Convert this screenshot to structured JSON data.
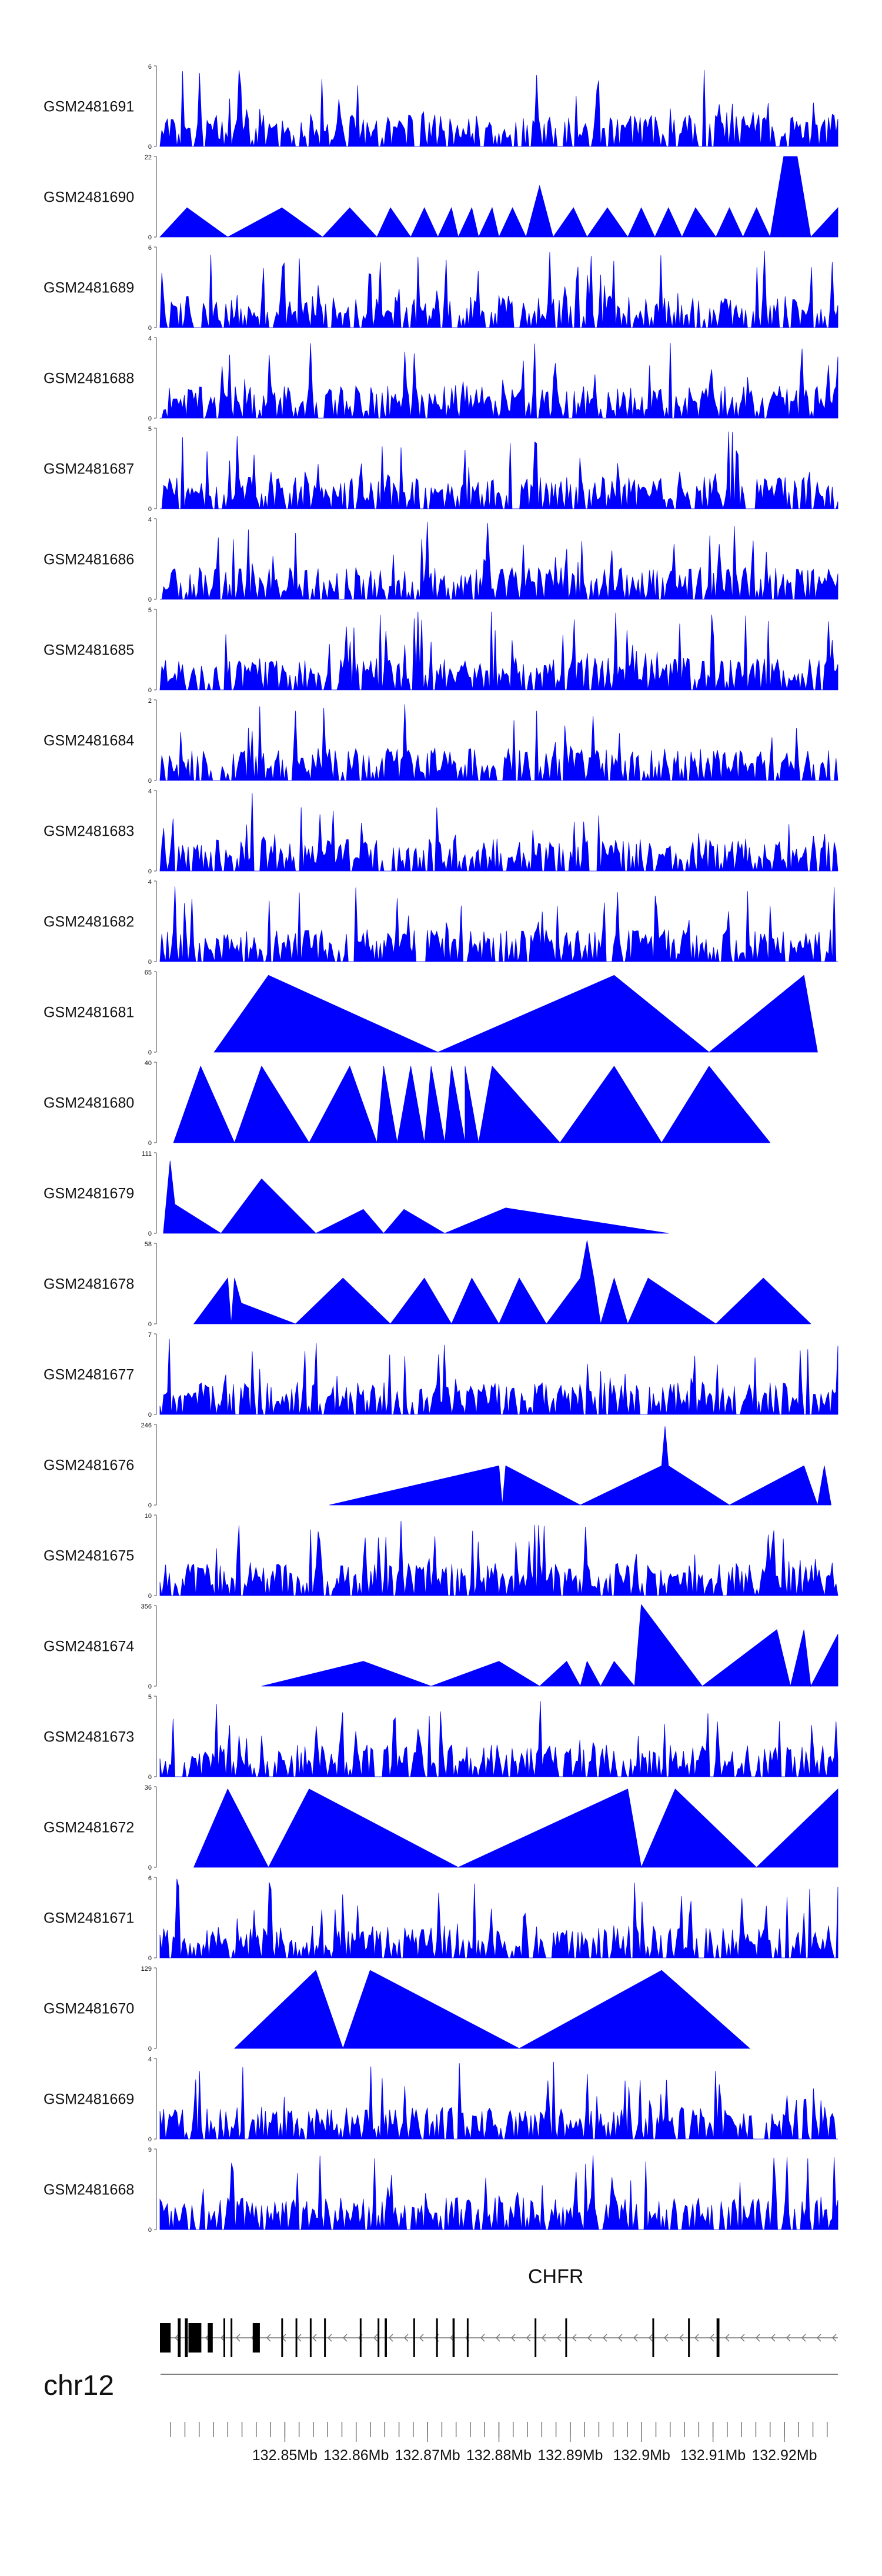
{
  "chart_data": {
    "type": "area",
    "title": "",
    "chromosome": "chr12",
    "gene": "CHFR",
    "fill_color": "#0000ff",
    "x_range": [
      132.8325,
      132.9275
    ],
    "x_axis_labels": [
      "132.85Mb",
      "132.86Mb",
      "132.87Mb",
      "132.88Mb",
      "132.89Mb",
      "132.9Mb",
      "132.91Mb",
      "132.92Mb"
    ],
    "x_axis_label_values": [
      132.85,
      132.86,
      132.87,
      132.88,
      132.89,
      132.9,
      132.91,
      132.92
    ],
    "tracks": [
      {
        "name": "GSM2481691",
        "ymax": 6,
        "style": "dense",
        "seed": 91,
        "points": []
      },
      {
        "name": "GSM2481690",
        "ymax": 22,
        "style": "sparse",
        "seed": 0,
        "points": [
          [
            0.0,
            0
          ],
          [
            0.04,
            8
          ],
          [
            0.1,
            0
          ],
          [
            0.18,
            8
          ],
          [
            0.24,
            0
          ],
          [
            0.28,
            8
          ],
          [
            0.32,
            0
          ],
          [
            0.34,
            8
          ],
          [
            0.37,
            0
          ],
          [
            0.39,
            8
          ],
          [
            0.41,
            0
          ],
          [
            0.43,
            8
          ],
          [
            0.44,
            0
          ],
          [
            0.46,
            8
          ],
          [
            0.47,
            0
          ],
          [
            0.49,
            8
          ],
          [
            0.5,
            0
          ],
          [
            0.52,
            8
          ],
          [
            0.54,
            0
          ],
          [
            0.56,
            14
          ],
          [
            0.58,
            0
          ],
          [
            0.61,
            8
          ],
          [
            0.63,
            0
          ],
          [
            0.66,
            8
          ],
          [
            0.69,
            0
          ],
          [
            0.71,
            8
          ],
          [
            0.73,
            0
          ],
          [
            0.75,
            8
          ],
          [
            0.77,
            0
          ],
          [
            0.79,
            8
          ],
          [
            0.82,
            0
          ],
          [
            0.84,
            8
          ],
          [
            0.86,
            0
          ],
          [
            0.88,
            8
          ],
          [
            0.9,
            0
          ],
          [
            0.92,
            22
          ],
          [
            0.94,
            22
          ],
          [
            0.96,
            0
          ],
          [
            1.0,
            8
          ],
          [
            1.0,
            0
          ]
        ]
      },
      {
        "name": "GSM2481689",
        "ymax": 6,
        "style": "dense",
        "seed": 89,
        "points": []
      },
      {
        "name": "GSM2481688",
        "ymax": 4,
        "style": "dense",
        "seed": 88,
        "points": []
      },
      {
        "name": "GSM2481687",
        "ymax": 5,
        "style": "dense",
        "seed": 87,
        "points": []
      },
      {
        "name": "GSM2481686",
        "ymax": 4,
        "style": "dense",
        "seed": 86,
        "points": []
      },
      {
        "name": "GSM2481685",
        "ymax": 5,
        "style": "dense",
        "seed": 85,
        "points": []
      },
      {
        "name": "GSM2481684",
        "ymax": 2,
        "style": "dense",
        "seed": 84,
        "points": []
      },
      {
        "name": "GSM2481683",
        "ymax": 4,
        "style": "dense",
        "seed": 83,
        "points": []
      },
      {
        "name": "GSM2481682",
        "ymax": 4,
        "style": "dense",
        "seed": 82,
        "points": []
      },
      {
        "name": "GSM2481681",
        "ymax": 65,
        "style": "sparse",
        "seed": 0,
        "points": [
          [
            0.08,
            0
          ],
          [
            0.16,
            62
          ],
          [
            0.41,
            0
          ],
          [
            0.67,
            62
          ],
          [
            0.81,
            0
          ],
          [
            0.95,
            62
          ],
          [
            0.97,
            0
          ]
        ]
      },
      {
        "name": "GSM2481680",
        "ymax": 40,
        "style": "sparse",
        "seed": 0,
        "points": [
          [
            0.02,
            0
          ],
          [
            0.06,
            38
          ],
          [
            0.11,
            0
          ],
          [
            0.15,
            38
          ],
          [
            0.22,
            0
          ],
          [
            0.28,
            38
          ],
          [
            0.32,
            0
          ],
          [
            0.33,
            38
          ],
          [
            0.35,
            0
          ],
          [
            0.37,
            38
          ],
          [
            0.39,
            0
          ],
          [
            0.4,
            38
          ],
          [
            0.42,
            0
          ],
          [
            0.43,
            38
          ],
          [
            0.45,
            0
          ],
          [
            0.45,
            38
          ],
          [
            0.47,
            0
          ],
          [
            0.49,
            38
          ],
          [
            0.59,
            0
          ],
          [
            0.67,
            38
          ],
          [
            0.74,
            0
          ],
          [
            0.81,
            38
          ],
          [
            0.9,
            0
          ]
        ]
      },
      {
        "name": "GSM2481679",
        "ymax": 111,
        "style": "sparse",
        "seed": 0,
        "points": [
          [
            0.005,
            0
          ],
          [
            0.015,
            100
          ],
          [
            0.022,
            40
          ],
          [
            0.09,
            0
          ],
          [
            0.15,
            75
          ],
          [
            0.23,
            0
          ],
          [
            0.3,
            33
          ],
          [
            0.33,
            0
          ],
          [
            0.36,
            33
          ],
          [
            0.42,
            0
          ],
          [
            0.51,
            35
          ],
          [
            0.75,
            0
          ]
        ]
      },
      {
        "name": "GSM2481678",
        "ymax": 58,
        "style": "sparse",
        "seed": 0,
        "points": [
          [
            0.05,
            0
          ],
          [
            0.1,
            33
          ],
          [
            0.105,
            0
          ],
          [
            0.11,
            33
          ],
          [
            0.12,
            15
          ],
          [
            0.2,
            0
          ],
          [
            0.27,
            33
          ],
          [
            0.34,
            0
          ],
          [
            0.39,
            33
          ],
          [
            0.43,
            0
          ],
          [
            0.46,
            33
          ],
          [
            0.5,
            0
          ],
          [
            0.53,
            33
          ],
          [
            0.57,
            0
          ],
          [
            0.62,
            33
          ],
          [
            0.63,
            60
          ],
          [
            0.64,
            33
          ],
          [
            0.65,
            0
          ],
          [
            0.67,
            33
          ],
          [
            0.69,
            0
          ],
          [
            0.72,
            33
          ],
          [
            0.82,
            0
          ],
          [
            0.89,
            33
          ],
          [
            0.96,
            0
          ]
        ]
      },
      {
        "name": "GSM2481677",
        "ymax": 7,
        "style": "dense",
        "seed": 77,
        "points": []
      },
      {
        "name": "GSM2481676",
        "ymax": 246,
        "style": "sparse",
        "seed": 0,
        "points": [
          [
            0.25,
            0
          ],
          [
            0.5,
            120
          ],
          [
            0.505,
            0
          ],
          [
            0.51,
            120
          ],
          [
            0.62,
            0
          ],
          [
            0.74,
            120
          ],
          [
            0.745,
            240
          ],
          [
            0.75,
            120
          ],
          [
            0.84,
            0
          ],
          [
            0.95,
            120
          ],
          [
            0.97,
            0
          ],
          [
            0.98,
            120
          ],
          [
            0.99,
            0
          ]
        ]
      },
      {
        "name": "GSM2481675",
        "ymax": 10,
        "style": "dense",
        "seed": 75,
        "points": []
      },
      {
        "name": "GSM2481674",
        "ymax": 356,
        "style": "sparse",
        "seed": 0,
        "points": [
          [
            0.15,
            0
          ],
          [
            0.3,
            110
          ],
          [
            0.4,
            0
          ],
          [
            0.5,
            110
          ],
          [
            0.56,
            0
          ],
          [
            0.6,
            110
          ],
          [
            0.62,
            0
          ],
          [
            0.63,
            110
          ],
          [
            0.65,
            0
          ],
          [
            0.67,
            110
          ],
          [
            0.7,
            0
          ],
          [
            0.71,
            360
          ],
          [
            0.8,
            0
          ],
          [
            0.91,
            250
          ],
          [
            0.93,
            0
          ],
          [
            0.95,
            250
          ],
          [
            0.96,
            0
          ],
          [
            1.0,
            230
          ],
          [
            1.0,
            0
          ]
        ]
      },
      {
        "name": "GSM2481673",
        "ymax": 5,
        "style": "dense",
        "seed": 73,
        "points": []
      },
      {
        "name": "GSM2481672",
        "ymax": 36,
        "style": "sparse",
        "seed": 0,
        "points": [
          [
            0.05,
            0
          ],
          [
            0.1,
            35
          ],
          [
            0.16,
            0
          ],
          [
            0.22,
            35
          ],
          [
            0.44,
            0
          ],
          [
            0.69,
            35
          ],
          [
            0.71,
            0
          ],
          [
            0.76,
            35
          ],
          [
            0.88,
            0
          ],
          [
            1.0,
            35
          ],
          [
            1.0,
            0
          ]
        ]
      },
      {
        "name": "GSM2481671",
        "ymax": 6,
        "style": "dense",
        "seed": 71,
        "points": []
      },
      {
        "name": "GSM2481670",
        "ymax": 129,
        "style": "sparse",
        "seed": 0,
        "points": [
          [
            0.11,
            0
          ],
          [
            0.23,
            125
          ],
          [
            0.27,
            0
          ],
          [
            0.31,
            125
          ],
          [
            0.53,
            0
          ],
          [
            0.74,
            125
          ],
          [
            0.87,
            0
          ]
        ]
      },
      {
        "name": "GSM2481669",
        "ymax": 4,
        "style": "dense",
        "seed": 69,
        "points": []
      },
      {
        "name": "GSM2481668",
        "ymax": 9,
        "style": "dense",
        "seed": 68,
        "points": []
      }
    ],
    "gene_model": {
      "strand": "-",
      "x_start": 132.8325,
      "x_end": 132.9275,
      "exons": [
        [
          132.8325,
          132.834
        ],
        [
          132.835,
          132.8354
        ],
        [
          132.836,
          132.8364
        ],
        [
          132.8365,
          132.8383
        ],
        [
          132.8392,
          132.8399
        ],
        [
          132.8414,
          132.8415
        ],
        [
          132.8424,
          132.8426
        ],
        [
          132.8455,
          132.8465
        ],
        [
          132.8495,
          132.8497
        ],
        [
          132.8515,
          132.8517
        ],
        [
          132.8535,
          132.8537
        ],
        [
          132.8555,
          132.8557
        ],
        [
          132.8605,
          132.8607
        ],
        [
          132.863,
          132.8632
        ],
        [
          132.864,
          132.8643
        ],
        [
          132.868,
          132.8682
        ],
        [
          132.8712,
          132.8714
        ],
        [
          132.8735,
          132.8738
        ],
        [
          132.8755,
          132.8757
        ],
        [
          132.885,
          132.8852
        ],
        [
          132.8893,
          132.8895
        ],
        [
          132.9015,
          132.9017
        ],
        [
          132.9065,
          132.9067
        ],
        [
          132.9105,
          132.9109
        ]
      ]
    }
  }
}
